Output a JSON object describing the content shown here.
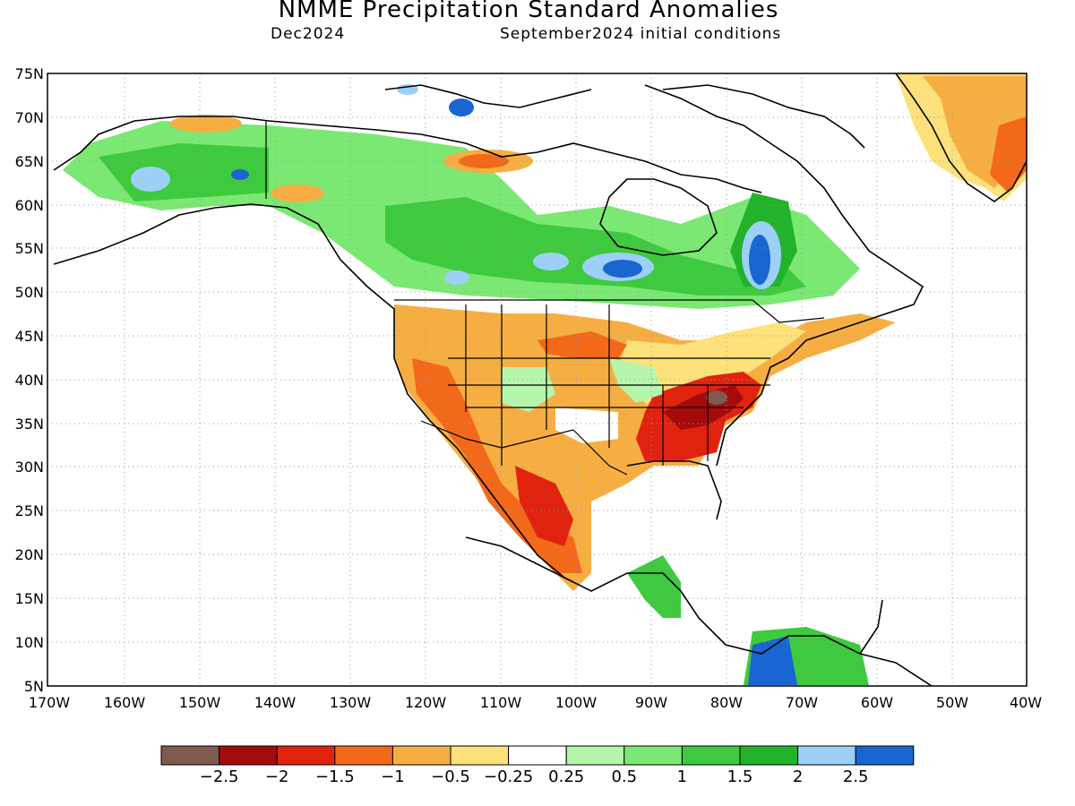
{
  "map": {
    "title": "NMME Precipitation Standard Anomalies",
    "target_month": "Dec2024",
    "initial_conditions": "September2024 initial conditions",
    "lat_labels": [
      "75N",
      "70N",
      "65N",
      "60N",
      "55N",
      "50N",
      "45N",
      "40N",
      "35N",
      "30N",
      "25N",
      "20N",
      "15N",
      "10N",
      "5N"
    ],
    "lon_labels": [
      "170W",
      "160W",
      "150W",
      "140W",
      "130W",
      "120W",
      "110W",
      "100W",
      "90W",
      "80W",
      "70W",
      "60W",
      "50W",
      "40W"
    ],
    "colorbar": {
      "labels": [
        "−2.5",
        "−2",
        "−1.5",
        "−1",
        "−0.5",
        "−0.25",
        "0.25",
        "0.5",
        "1",
        "1.5",
        "2",
        "2.5"
      ],
      "colors": [
        "#7f5a4f",
        "#a50b0b",
        "#e0230f",
        "#f2691a",
        "#f6ae43",
        "#fde17a",
        "#ffffff",
        "#b5f5ac",
        "#7ae872",
        "#3fc93f",
        "#22b22b",
        "#9cd0f7",
        "#1966d2"
      ]
    },
    "palette": {
      "land_outline": "#000000",
      "grid": "#9a9a9a"
    }
  }
}
